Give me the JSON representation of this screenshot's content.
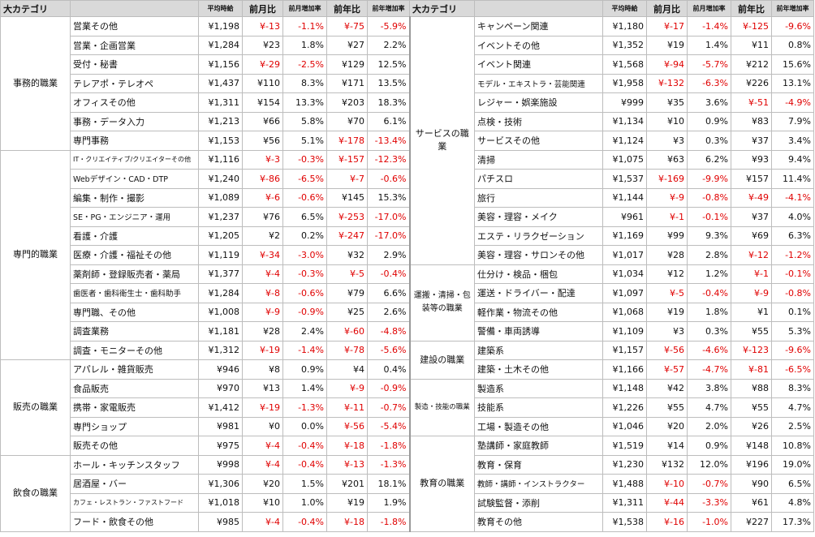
{
  "header": {
    "category": "大カテゴリ",
    "columns": [
      "平均時給",
      "前月比",
      "前月増加率",
      "前年比",
      "前年増加率"
    ]
  },
  "left": [
    {
      "category": "事務的職業",
      "rows": [
        [
          "営業その他",
          "¥1,198",
          "¥-13",
          "-1.1%",
          "¥-75",
          "-5.9%"
        ],
        [
          "営業・企画営業",
          "¥1,284",
          "¥23",
          "1.8%",
          "¥27",
          "2.2%"
        ],
        [
          "受付・秘書",
          "¥1,156",
          "¥-29",
          "-2.5%",
          "¥129",
          "12.5%"
        ],
        [
          "テレアポ・テレオペ",
          "¥1,437",
          "¥110",
          "8.3%",
          "¥171",
          "13.5%"
        ],
        [
          "オフィスその他",
          "¥1,311",
          "¥154",
          "13.3%",
          "¥203",
          "18.3%"
        ],
        [
          "事務・データ入力",
          "¥1,213",
          "¥66",
          "5.8%",
          "¥70",
          "6.1%"
        ],
        [
          "専門事務",
          "¥1,153",
          "¥56",
          "5.1%",
          "¥-178",
          "-13.4%"
        ]
      ]
    },
    {
      "category": "専門的職業",
      "rows": [
        [
          "IT・クリエイティブ/クリエイターその他",
          "¥1,116",
          "¥-3",
          "-0.3%",
          "¥-157",
          "-12.3%"
        ],
        [
          "Webデザイン・CAD・DTP",
          "¥1,240",
          "¥-86",
          "-6.5%",
          "¥-7",
          "-0.6%"
        ],
        [
          "編集・制作・撮影",
          "¥1,089",
          "¥-6",
          "-0.6%",
          "¥145",
          "15.3%"
        ],
        [
          "SE・PG・エンジニア・運用",
          "¥1,237",
          "¥76",
          "6.5%",
          "¥-253",
          "-17.0%"
        ],
        [
          "看護・介護",
          "¥1,205",
          "¥2",
          "0.2%",
          "¥-247",
          "-17.0%"
        ],
        [
          "医療・介護・福祉その他",
          "¥1,119",
          "¥-34",
          "-3.0%",
          "¥32",
          "2.9%"
        ],
        [
          "薬剤師・登録販売者・薬局",
          "¥1,377",
          "¥-4",
          "-0.3%",
          "¥-5",
          "-0.4%"
        ],
        [
          "歯医者・歯科衛生士・歯科助手",
          "¥1,284",
          "¥-8",
          "-0.6%",
          "¥79",
          "6.6%"
        ],
        [
          "専門職、その他",
          "¥1,008",
          "¥-9",
          "-0.9%",
          "¥25",
          "2.6%"
        ],
        [
          "調査業務",
          "¥1,181",
          "¥28",
          "2.4%",
          "¥-60",
          "-4.8%"
        ],
        [
          "調査・モニターその他",
          "¥1,312",
          "¥-19",
          "-1.4%",
          "¥-78",
          "-5.6%"
        ]
      ]
    },
    {
      "category": "販売の職業",
      "rows": [
        [
          "アパレル・雑貨販売",
          "¥946",
          "¥8",
          "0.9%",
          "¥4",
          "0.4%"
        ],
        [
          "食品販売",
          "¥970",
          "¥13",
          "1.4%",
          "¥-9",
          "-0.9%"
        ],
        [
          "携帯・家電販売",
          "¥1,412",
          "¥-19",
          "-1.3%",
          "¥-11",
          "-0.7%"
        ],
        [
          "専門ショップ",
          "¥981",
          "¥0",
          "0.0%",
          "¥-56",
          "-5.4%"
        ],
        [
          "販売その他",
          "¥975",
          "¥-4",
          "-0.4%",
          "¥-18",
          "-1.8%"
        ]
      ]
    },
    {
      "category": "飲食の職業",
      "rows": [
        [
          "ホール・キッチンスタッフ",
          "¥998",
          "¥-4",
          "-0.4%",
          "¥-13",
          "-1.3%"
        ],
        [
          "居酒屋・バー",
          "¥1,306",
          "¥20",
          "1.5%",
          "¥201",
          "18.1%"
        ],
        [
          "カフェ・レストラン・ファストフード",
          "¥1,018",
          "¥10",
          "1.0%",
          "¥19",
          "1.9%"
        ],
        [
          "フード・飲食その他",
          "¥985",
          "¥-4",
          "-0.4%",
          "¥-18",
          "-1.8%"
        ]
      ]
    }
  ],
  "right": [
    {
      "category": "サービスの職業",
      "rows": [
        [
          "キャンペーン関連",
          "¥1,180",
          "¥-17",
          "-1.4%",
          "¥-125",
          "-9.6%"
        ],
        [
          "イベントその他",
          "¥1,352",
          "¥19",
          "1.4%",
          "¥11",
          "0.8%"
        ],
        [
          "イベント関連",
          "¥1,568",
          "¥-94",
          "-5.7%",
          "¥212",
          "15.6%"
        ],
        [
          "モデル・エキストラ・芸能関連",
          "¥1,958",
          "¥-132",
          "-6.3%",
          "¥226",
          "13.1%"
        ],
        [
          "レジャー・娯楽施設",
          "¥999",
          "¥35",
          "3.6%",
          "¥-51",
          "-4.9%"
        ],
        [
          "点検・技術",
          "¥1,134",
          "¥10",
          "0.9%",
          "¥83",
          "7.9%"
        ],
        [
          "サービスその他",
          "¥1,124",
          "¥3",
          "0.3%",
          "¥37",
          "3.4%"
        ],
        [
          "清掃",
          "¥1,075",
          "¥63",
          "6.2%",
          "¥93",
          "9.4%"
        ],
        [
          "パチスロ",
          "¥1,537",
          "¥-169",
          "-9.9%",
          "¥157",
          "11.4%"
        ],
        [
          "旅行",
          "¥1,144",
          "¥-9",
          "-0.8%",
          "¥-49",
          "-4.1%"
        ],
        [
          "美容・理容・メイク",
          "¥961",
          "¥-1",
          "-0.1%",
          "¥37",
          "4.0%"
        ],
        [
          "エステ・リラクゼーション",
          "¥1,169",
          "¥99",
          "9.3%",
          "¥69",
          "6.3%"
        ],
        [
          "美容・理容・サロンその他",
          "¥1,017",
          "¥28",
          "2.8%",
          "¥-12",
          "-1.2%"
        ]
      ]
    },
    {
      "category": "運搬・清掃・包装等の職業",
      "rows": [
        [
          "仕分け・検品・梱包",
          "¥1,034",
          "¥12",
          "1.2%",
          "¥-1",
          "-0.1%"
        ],
        [
          "運送・ドライバー・配達",
          "¥1,097",
          "¥-5",
          "-0.4%",
          "¥-9",
          "-0.8%"
        ],
        [
          "軽作業・物流その他",
          "¥1,068",
          "¥19",
          "1.8%",
          "¥1",
          "0.1%"
        ],
        [
          "警備・車両誘導",
          "¥1,109",
          "¥3",
          "0.3%",
          "¥55",
          "5.3%"
        ]
      ]
    },
    {
      "category": "建設の職業",
      "rows": [
        [
          "建築系",
          "¥1,157",
          "¥-56",
          "-4.6%",
          "¥-123",
          "-9.6%"
        ],
        [
          "建築・土木その他",
          "¥1,166",
          "¥-57",
          "-4.7%",
          "¥-81",
          "-6.5%"
        ]
      ]
    },
    {
      "category": "製造・技能の職業",
      "rows": [
        [
          "製造系",
          "¥1,148",
          "¥42",
          "3.8%",
          "¥88",
          "8.3%"
        ],
        [
          "技能系",
          "¥1,226",
          "¥55",
          "4.7%",
          "¥55",
          "4.7%"
        ],
        [
          "工場・製造その他",
          "¥1,046",
          "¥20",
          "2.0%",
          "¥26",
          "2.5%"
        ]
      ]
    },
    {
      "category": "教育の職業",
      "rows": [
        [
          "塾講師・家庭教師",
          "¥1,519",
          "¥14",
          "0.9%",
          "¥148",
          "10.8%"
        ],
        [
          "教育・保育",
          "¥1,230",
          "¥132",
          "12.0%",
          "¥196",
          "19.0%"
        ],
        [
          "教師・講師・インストラクター",
          "¥1,488",
          "¥-10",
          "-0.7%",
          "¥90",
          "6.5%"
        ],
        [
          "試験監督・添削",
          "¥1,311",
          "¥-44",
          "-3.3%",
          "¥61",
          "4.8%"
        ],
        [
          "教育その他",
          "¥1,538",
          "¥-16",
          "-1.0%",
          "¥227",
          "17.3%"
        ]
      ]
    }
  ]
}
